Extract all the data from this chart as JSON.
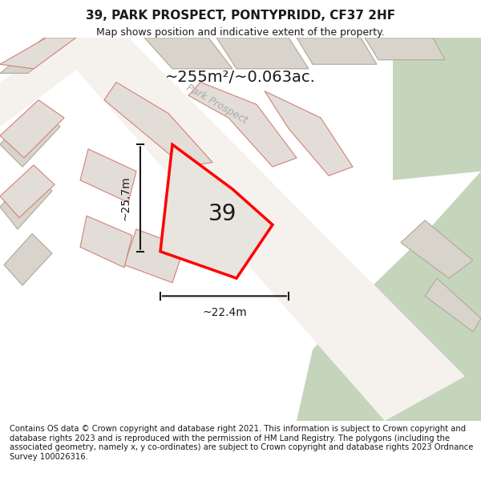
{
  "title": "39, PARK PROSPECT, PONTYPRIDD, CF37 2HF",
  "subtitle": "Map shows position and indicative extent of the property.",
  "area_label": "~255m²/~0.063ac.",
  "plot_number": "39",
  "dim_width": "~22.4m",
  "dim_height": "~25.7m",
  "footer": "Contains OS data © Crown copyright and database right 2021. This information is subject to Crown copyright and database rights 2023 and is reproduced with the permission of HM Land Registry. The polygons (including the associated geometry, namely x, y co-ordinates) are subject to Crown copyright and database rights 2023 Ordnance Survey 100026316.",
  "bg_color": "#f0ede8",
  "map_bg": "#e8e4de",
  "green_area_color": "#c8d8c0",
  "road_color": "#ffffff",
  "building_color": "#d8d4ce",
  "plot_outline_color": "#ff0000",
  "plot_fill_color": "#e8e4de",
  "dim_line_color": "#1a1a1a",
  "text_color": "#1a1a1a",
  "road_label_color": "#888888",
  "road_label": "Park Prospect",
  "figsize": [
    6.0,
    6.25
  ],
  "dpi": 100
}
